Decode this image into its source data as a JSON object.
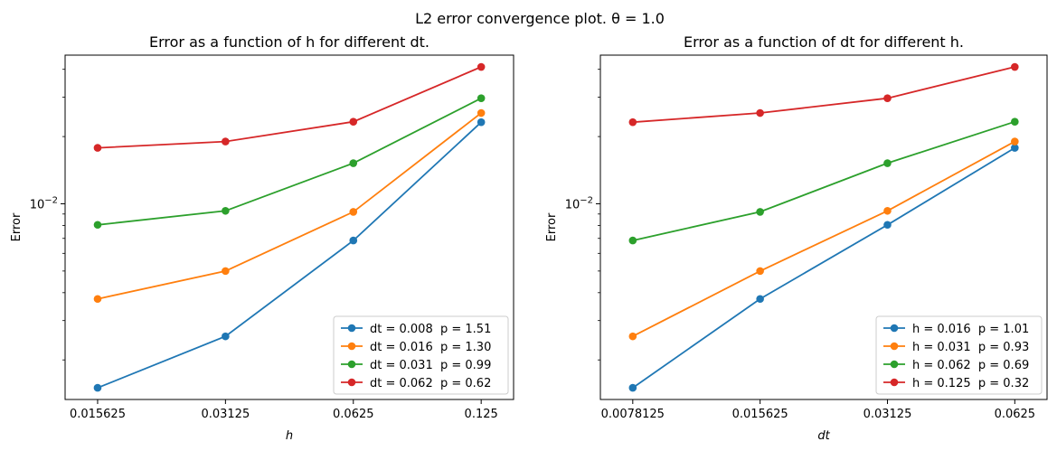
{
  "figure": {
    "suptitle": "L2 error convergence plot. θ = 1.0"
  },
  "chart_data": [
    {
      "type": "line",
      "title": "Error as a function of h for different dt.",
      "xlabel": "h",
      "ylabel": "Error",
      "xscale": "log2",
      "yscale": "log",
      "xlim": [
        0.0131,
        0.149
      ],
      "ylim": [
        0.00133,
        0.0463
      ],
      "x": [
        0.015625,
        0.03125,
        0.0625,
        0.125
      ],
      "xticks": [
        "0.015625",
        "0.03125",
        "0.0625",
        "0.125"
      ],
      "yticks": [
        {
          "value": 0.01,
          "label": "10",
          "exp": "−2"
        }
      ],
      "legend_position": "lower-right",
      "series": [
        {
          "name": "dt = 0.008  p = 1.51",
          "color": "#1f77b4",
          "values": [
            0.0015,
            0.00255,
            0.00685,
            0.0232
          ]
        },
        {
          "name": "dt = 0.016  p = 1.30",
          "color": "#ff7f0e",
          "values": [
            0.00375,
            0.005,
            0.0092,
            0.0255
          ]
        },
        {
          "name": "dt = 0.031  p = 0.99",
          "color": "#2ca02c",
          "values": [
            0.00805,
            0.0093,
            0.0152,
            0.0297
          ]
        },
        {
          "name": "dt = 0.062  p = 0.62",
          "color": "#d62728",
          "values": [
            0.0178,
            0.019,
            0.0233,
            0.041
          ]
        }
      ]
    },
    {
      "type": "line",
      "title": "Error as a function of dt for different h.",
      "xlabel": "dt",
      "ylabel": "Error",
      "xscale": "log2",
      "yscale": "log",
      "xlim": [
        0.00655,
        0.0745
      ],
      "ylim": [
        0.00133,
        0.0463
      ],
      "x": [
        0.0078125,
        0.015625,
        0.03125,
        0.0625
      ],
      "xticks": [
        "0.0078125",
        "0.015625",
        "0.03125",
        "0.0625"
      ],
      "yticks": [
        {
          "value": 0.01,
          "label": "10",
          "exp": "−2"
        }
      ],
      "legend_position": "lower-right",
      "series": [
        {
          "name": "h = 0.016  p = 1.01",
          "color": "#1f77b4",
          "values": [
            0.0015,
            0.00375,
            0.00805,
            0.0178
          ]
        },
        {
          "name": "h = 0.031  p = 0.93",
          "color": "#ff7f0e",
          "values": [
            0.00255,
            0.005,
            0.0093,
            0.019
          ]
        },
        {
          "name": "h = 0.062  p = 0.69",
          "color": "#2ca02c",
          "values": [
            0.00685,
            0.0092,
            0.0152,
            0.0233
          ]
        },
        {
          "name": "h = 0.125  p = 0.32",
          "color": "#d62728",
          "values": [
            0.0232,
            0.0255,
            0.0297,
            0.041
          ]
        }
      ]
    }
  ]
}
